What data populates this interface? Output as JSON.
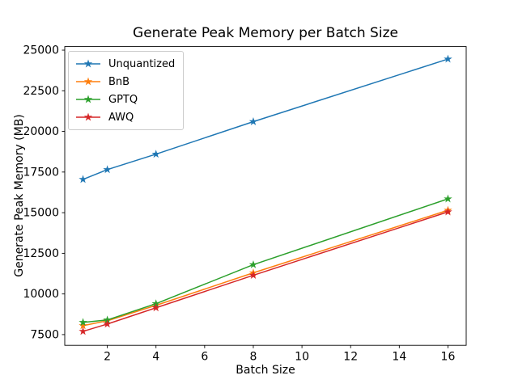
{
  "figure": {
    "title": "Generate Peak Memory per Batch Size",
    "xlabel": "Batch Size",
    "ylabel": "Generate Peak Memory (MB)"
  },
  "chart_data": {
    "type": "line",
    "title": "Generate Peak Memory per Batch Size",
    "xlabel": "Batch Size",
    "ylabel": "Generate Peak Memory (MB)",
    "x": [
      1,
      2,
      4,
      8,
      16
    ],
    "series": [
      {
        "name": "Unquantized",
        "color": "#1f77b4",
        "values": [
          17050,
          17650,
          18600,
          20600,
          24450
        ]
      },
      {
        "name": "BnB",
        "color": "#ff7f0e",
        "values": [
          8050,
          8350,
          9300,
          11300,
          15150
        ]
      },
      {
        "name": "GPTQ",
        "color": "#2ca02c",
        "values": [
          8250,
          8400,
          9400,
          11800,
          15850
        ]
      },
      {
        "name": "AWQ",
        "color": "#d62728",
        "values": [
          7700,
          8150,
          9150,
          11150,
          15050
        ]
      }
    ],
    "xticks": [
      2,
      4,
      6,
      8,
      10,
      12,
      14,
      16
    ],
    "yticks": [
      7500,
      10000,
      12500,
      15000,
      17500,
      20000,
      22500,
      25000
    ],
    "xlim": [
      0.25,
      16.75
    ],
    "ylim": [
      6840,
      25220
    ],
    "grid": false,
    "legend_position": "upper left",
    "marker": "star",
    "axis_color": "#000000",
    "background_color": "#ffffff"
  }
}
